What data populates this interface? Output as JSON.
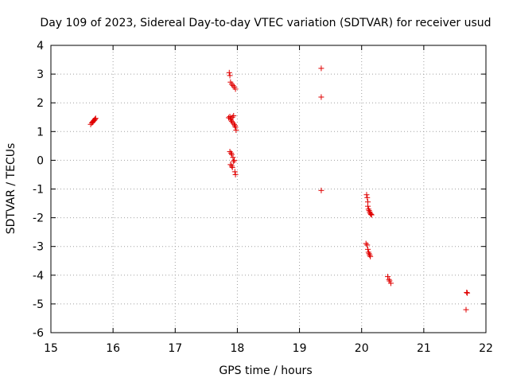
{
  "chart_data": {
    "type": "scatter",
    "title": "Day 109 of 2023, Sidereal Day-to-day VTEC variation (SDTVAR) for receiver usud",
    "xlabel": "GPS time / hours",
    "ylabel": "SDTVAR / TECUs",
    "xlim": [
      15,
      22
    ],
    "ylim": [
      -6,
      4
    ],
    "xticks": [
      15,
      16,
      17,
      18,
      19,
      20,
      21,
      22
    ],
    "yticks": [
      -6,
      -5,
      -4,
      -3,
      -2,
      -1,
      0,
      1,
      2,
      3,
      4
    ],
    "grid": true,
    "legend": "none",
    "marker": "+",
    "color": "#e00000",
    "series": [
      {
        "x": [
          15.64,
          15.66,
          15.67,
          15.68,
          15.69,
          15.7,
          15.71,
          15.72,
          17.87,
          17.88,
          17.89,
          17.91,
          17.93,
          17.95,
          17.97,
          17.86,
          17.88,
          17.89,
          17.9,
          17.91,
          17.92,
          17.93,
          17.94,
          17.95,
          17.96,
          17.97,
          17.98,
          17.88,
          17.9,
          17.91,
          17.93,
          17.89,
          17.91,
          17.92,
          17.94,
          17.95,
          17.96,
          17.97,
          19.35,
          19.35,
          19.35,
          20.08,
          20.09,
          20.1,
          20.1,
          20.11,
          20.12,
          20.13,
          20.14,
          20.15,
          20.16,
          20.07,
          20.09,
          20.1,
          20.11,
          20.12,
          20.13,
          20.14,
          20.42,
          20.44,
          20.45,
          20.47,
          21.69,
          21.7,
          21.68
        ],
        "y": [
          1.25,
          1.3,
          1.33,
          1.35,
          1.38,
          1.4,
          1.43,
          1.46,
          3.05,
          2.95,
          2.72,
          2.65,
          2.6,
          2.55,
          2.48,
          1.48,
          1.52,
          1.45,
          1.4,
          1.35,
          1.5,
          1.3,
          1.55,
          1.25,
          1.2,
          1.15,
          1.05,
          0.3,
          0.25,
          0.2,
          0.1,
          -0.15,
          -0.2,
          -0.25,
          -0.05,
          0.0,
          -0.4,
          -0.5,
          3.2,
          2.2,
          -1.05,
          -1.2,
          -1.3,
          -1.45,
          -1.6,
          -1.7,
          -1.75,
          -1.8,
          -1.85,
          -1.88,
          -1.9,
          -2.9,
          -2.95,
          -3.1,
          -3.2,
          -3.25,
          -3.3,
          -3.35,
          -4.05,
          -4.15,
          -4.2,
          -4.28,
          -4.6,
          -4.62,
          -5.2
        ]
      }
    ]
  }
}
